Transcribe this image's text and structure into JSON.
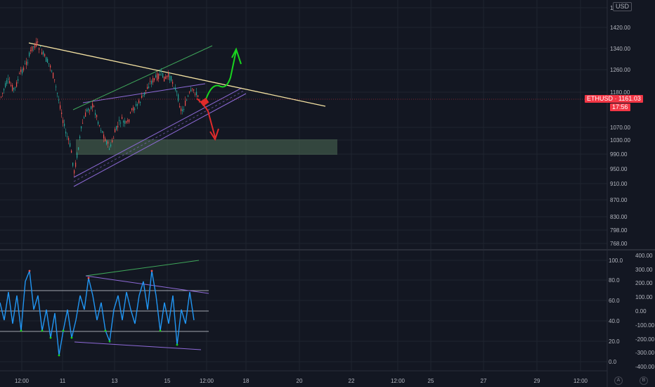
{
  "chart": {
    "symbol": "ETHUSD",
    "price_label": "ETHUSD · 1161.03",
    "countdown": "17:56",
    "currency": "USD",
    "price_axis": [
      "1500.00",
      "1420.00",
      "1340.00",
      "1260.00",
      "1180.00",
      "1070.00",
      "1030.00",
      "990.00",
      "950.00",
      "910.00",
      "870.00",
      "830.00",
      "798.00",
      "768.00"
    ],
    "osc_axis_left": [
      "100.0",
      "80.0",
      "60.0",
      "40.0",
      "20.0",
      "0.0"
    ],
    "osc_axis_right": [
      "400.00",
      "300.00",
      "200.00",
      "100.00",
      "0.00",
      "-100.00",
      "-200.00",
      "-300.00",
      "-400.00"
    ],
    "time_axis": [
      "12:00",
      "11",
      "13",
      "15",
      "12:00",
      "18",
      "20",
      "22",
      "12:00",
      "25",
      "27",
      "29",
      "12:00"
    ],
    "auto_label": "A",
    "log_label": "B"
  },
  "colors": {
    "background": "#131722",
    "up": "#26a69a",
    "down": "#ef5350",
    "trendline": "#f5e3a3",
    "channel": "#8e6ad8",
    "green_line": "#3fa65a",
    "zone": "#4f6e55",
    "osc": "#2196f3",
    "arrow_up": "#19d41f",
    "arrow_down": "#e02b2b"
  }
}
